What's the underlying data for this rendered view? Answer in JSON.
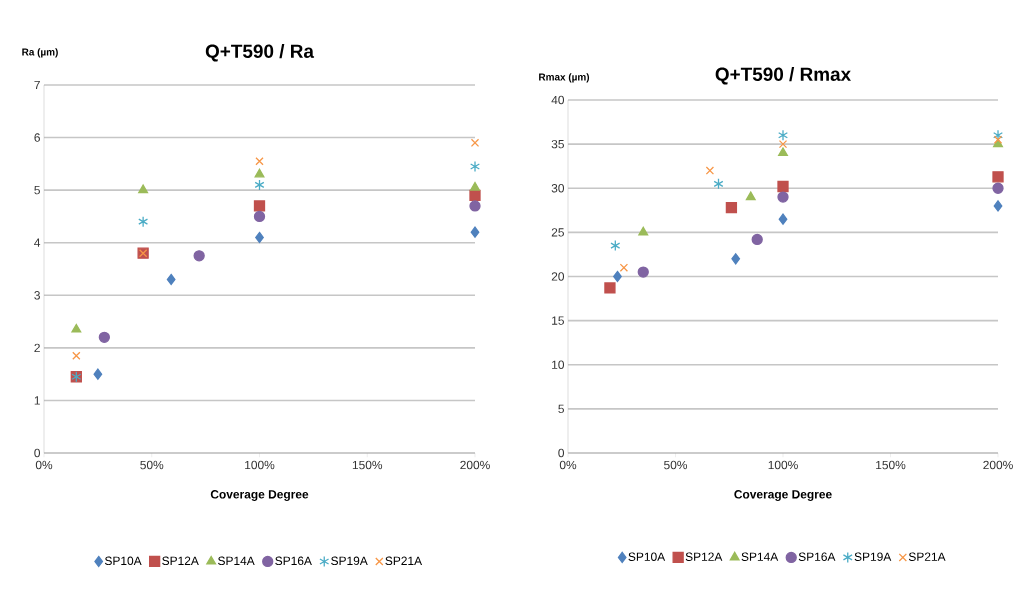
{
  "chart_data": [
    {
      "type": "scatter",
      "title": "Q+T590 / Ra",
      "xlabel": "Coverage Degree",
      "ylabel": "Ra (µm)",
      "legend": "bottom",
      "grid": "y",
      "xlim": [
        0,
        200
      ],
      "xticks": [
        {
          "value": 0,
          "label": "0%"
        },
        {
          "value": 50,
          "label": "50%"
        },
        {
          "value": 100,
          "label": "100%"
        },
        {
          "value": 150,
          "label": "150%"
        },
        {
          "value": 200,
          "label": "200%"
        }
      ],
      "ylim": [
        0,
        7
      ],
      "yticks": [
        0,
        1,
        2,
        3,
        4,
        5,
        6,
        7
      ],
      "series": [
        {
          "name": "SP10A",
          "color": "#4f81bd",
          "marker": "diamond",
          "x": [
            25,
            59,
            100,
            200
          ],
          "values": [
            1.5,
            3.3,
            4.1,
            4.2
          ]
        },
        {
          "name": "SP12A",
          "color": "#c0504d",
          "marker": "square",
          "x": [
            15,
            46,
            100,
            200
          ],
          "values": [
            1.45,
            3.8,
            4.7,
            4.9
          ]
        },
        {
          "name": "SP14A",
          "color": "#9bbb59",
          "marker": "triangle",
          "x": [
            15,
            46,
            100,
            200
          ],
          "values": [
            2.35,
            5.0,
            5.3,
            5.05
          ]
        },
        {
          "name": "SP16A",
          "color": "#8064a2",
          "marker": "circle",
          "x": [
            28,
            72,
            100,
            200
          ],
          "values": [
            2.2,
            3.75,
            4.5,
            4.7
          ]
        },
        {
          "name": "SP19A",
          "color": "#4bacc6",
          "x": [
            15,
            46,
            100,
            200
          ],
          "values": [
            1.45,
            4.4,
            5.1,
            5.45
          ]
        },
        {
          "name": "SP21A",
          "color": "#f79646",
          "marker": "cross",
          "x": [
            15,
            46,
            100,
            200
          ],
          "values": [
            1.85,
            3.8,
            5.55,
            5.9
          ]
        }
      ]
    },
    {
      "type": "scatter",
      "title": "Q+T590 / Rmax",
      "xlabel": "Coverage Degree",
      "ylabel": "Rmax (µm)",
      "legend": "bottom",
      "grid": "y",
      "xlim": [
        0,
        200
      ],
      "xticks": [
        {
          "value": 0,
          "label": "0%"
        },
        {
          "value": 50,
          "label": "50%"
        },
        {
          "value": 100,
          "label": "100%"
        },
        {
          "value": 150,
          "label": "150%"
        },
        {
          "value": 200,
          "label": "200%"
        }
      ],
      "ylim": [
        0,
        40
      ],
      "yticks": [
        0,
        5,
        10,
        15,
        20,
        25,
        30,
        35,
        40
      ],
      "series": [
        {
          "name": "SP10A",
          "color": "#4f81bd",
          "marker": "diamond",
          "x": [
            23,
            78,
            100,
            200
          ],
          "values": [
            20,
            22,
            26.5,
            28
          ]
        },
        {
          "name": "SP12A",
          "color": "#c0504d",
          "marker": "square",
          "x": [
            19.5,
            76,
            100,
            200
          ],
          "values": [
            18.7,
            27.8,
            30.2,
            31.3
          ]
        },
        {
          "name": "SP14A",
          "color": "#9bbb59",
          "marker": "triangle",
          "x": [
            35,
            85,
            100,
            200
          ],
          "values": [
            25,
            29,
            34,
            35
          ]
        },
        {
          "name": "SP16A",
          "color": "#8064a2",
          "marker": "circle",
          "x": [
            35,
            88,
            100,
            200
          ],
          "values": [
            20.5,
            24.2,
            29,
            30
          ]
        },
        {
          "name": "SP19A",
          "color": "#4bacc6",
          "x": [
            22,
            70,
            100,
            200
          ],
          "values": [
            23.5,
            30.5,
            36,
            36
          ]
        },
        {
          "name": "SP21A",
          "color": "#f79646",
          "marker": "cross",
          "x": [
            26,
            66,
            100,
            200
          ],
          "values": [
            21,
            32,
            35,
            35.5
          ]
        }
      ]
    }
  ]
}
